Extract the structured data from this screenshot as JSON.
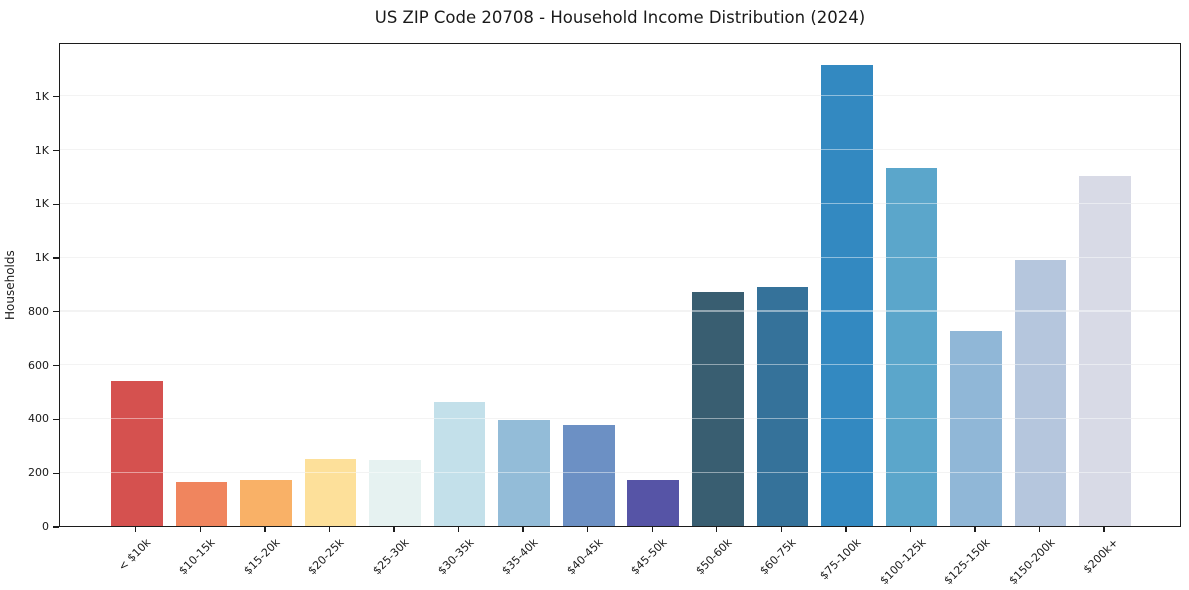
{
  "chart_data": {
    "type": "bar",
    "title": "US ZIP Code 20708 - Household Income Distribution (2024)",
    "xlabel": "",
    "ylabel": "Households",
    "categories": [
      "< $10k",
      "$10-15k",
      "$15-20k",
      "$20-25k",
      "$25-30k",
      "$30-35k",
      "$35-40k",
      "$40-45k",
      "$45-50k",
      "$50-60k",
      "$60-75k",
      "$75-100k",
      "$100-125k",
      "$125-150k",
      "$150-200k",
      "$200k+"
    ],
    "values": [
      540,
      165,
      170,
      250,
      245,
      460,
      395,
      375,
      170,
      870,
      890,
      1715,
      1330,
      725,
      990,
      1300
    ],
    "bar_colors": [
      "#d5514f",
      "#f0855e",
      "#f9b167",
      "#fde09a",
      "#e6f2f1",
      "#c3e0ea",
      "#93bcd8",
      "#6c90c4",
      "#5654a6",
      "#395e71",
      "#35729a",
      "#3389c1",
      "#5ba6cb",
      "#90b7d7",
      "#b5c6dd",
      "#d8dae6"
    ],
    "ylim": [
      0,
      1800
    ],
    "yticks": [
      {
        "value": 0,
        "label": "0"
      },
      {
        "value": 200,
        "label": "200"
      },
      {
        "value": 400,
        "label": "400"
      },
      {
        "value": 600,
        "label": "600"
      },
      {
        "value": 800,
        "label": "800"
      },
      {
        "value": 1000,
        "label": "1K"
      },
      {
        "value": 1200,
        "label": "1K"
      },
      {
        "value": 1400,
        "label": "1K"
      },
      {
        "value": 1600,
        "label": "1K"
      }
    ],
    "grid": "horizontal",
    "legend": "none",
    "background_color": "#ffffff",
    "axis_color": "#1c1c1c",
    "grid_color": "#e9e9e9"
  }
}
